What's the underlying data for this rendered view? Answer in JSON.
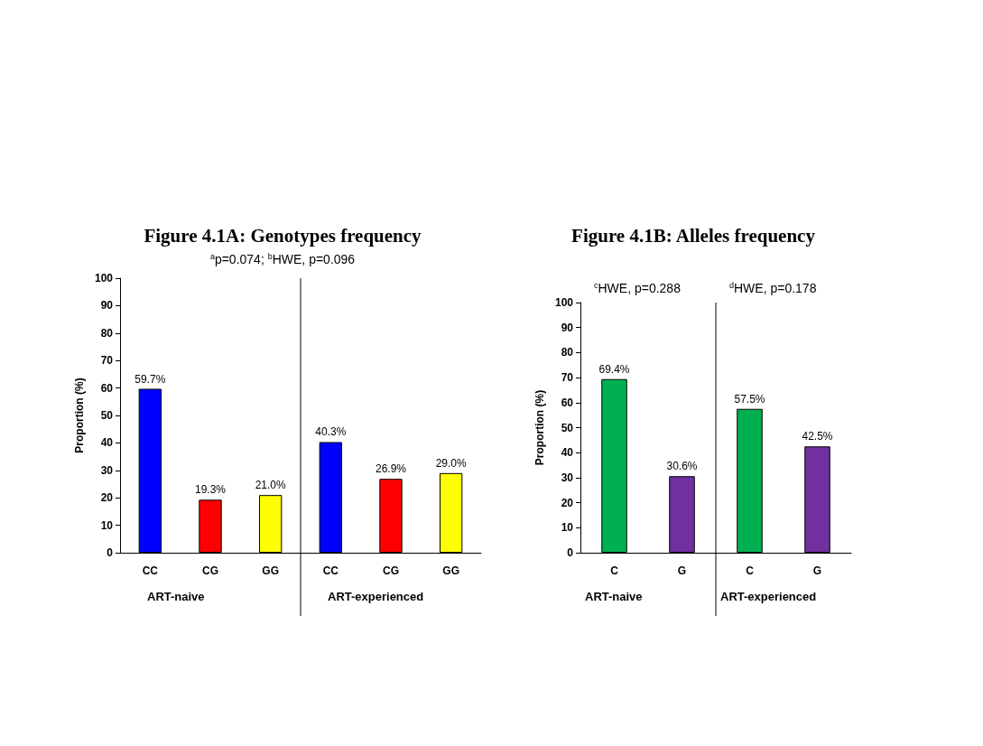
{
  "chart_data": [
    {
      "type": "bar",
      "title": "Figure 4.1A: Genotypes frequency",
      "subtitle": "$^{a}$p=0.074; $^{b}$HWE, p=0.096",
      "ylabel": "Proportion (%)",
      "categories": [
        "CC",
        "CG",
        "GG",
        "CC",
        "CG",
        "GG"
      ],
      "values": [
        59.7,
        19.3,
        21.0,
        40.3,
        26.9,
        29.0
      ],
      "colors": [
        "#0000ff",
        "#ff0000",
        "#ffff00",
        "#0000ff",
        "#ff0000",
        "#ffff00"
      ],
      "value_labels": [
        "59.7%",
        "19.3%",
        "21.0%",
        "40.3%",
        "26.9%",
        "29.0%"
      ],
      "ylim": [
        0,
        100
      ],
      "yticks": [
        0,
        10,
        20,
        30,
        40,
        50,
        60,
        70,
        80,
        90,
        100
      ],
      "grid": false,
      "annotations": [
        "ART-naive",
        "ART-experienced"
      ]
    },
    {
      "type": "bar",
      "title": "Figure 4.1B: Alleles frequency",
      "ylabel": "Proportion (%)",
      "categories": [
        "C",
        "G",
        "C",
        "G"
      ],
      "values": [
        69.4,
        30.6,
        57.5,
        42.5
      ],
      "colors": [
        "#00b050",
        "#7030a0",
        "#00b050",
        "#7030a0"
      ],
      "value_labels": [
        "69.4%",
        "30.6%",
        "57.5%",
        "42.5%"
      ],
      "ylim": [
        0,
        100
      ],
      "yticks": [
        0,
        10,
        20,
        30,
        40,
        50,
        60,
        70,
        80,
        90,
        100
      ],
      "grid": false,
      "annotations": [
        "$^{c}$HWE, p=0.288",
        "$^{d}$HWE, p=0.178",
        "ART-naive",
        "ART-experienced"
      ]
    }
  ]
}
